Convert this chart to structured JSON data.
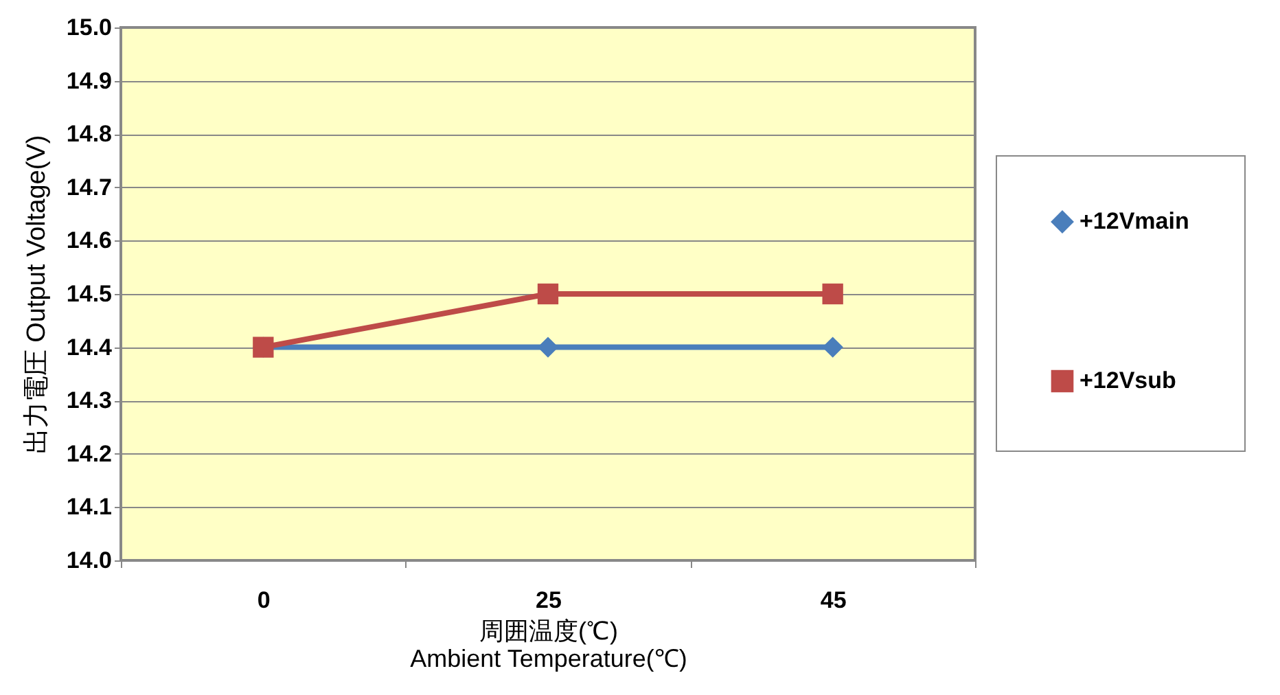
{
  "chart_data": {
    "type": "line",
    "xlabel": "周囲温度(℃)\nAmbient Temperature(℃)",
    "ylabel": "出力電圧  Output Voltage(V)",
    "categories": [
      "0",
      "25",
      "45"
    ],
    "series": [
      {
        "name": "+12Vmain",
        "color": "#4a7ebb",
        "values": [
          14.4,
          14.4,
          14.4
        ],
        "marker": "diamond"
      },
      {
        "name": "+12Vsub",
        "color": "#be4b48",
        "values": [
          14.4,
          14.5,
          14.5
        ],
        "marker": "square"
      }
    ],
    "ylim": [
      14.0,
      15.0
    ],
    "yticks": [
      {
        "value": 14,
        "label": "14.0"
      },
      14.1,
      14.2,
      14.3,
      14.4,
      14.5,
      14.6,
      14.7,
      14.8,
      14.9,
      {
        "value": 15,
        "label": "15.0"
      }
    ],
    "grid": "y",
    "legend": "right",
    "line_style": "solid"
  }
}
